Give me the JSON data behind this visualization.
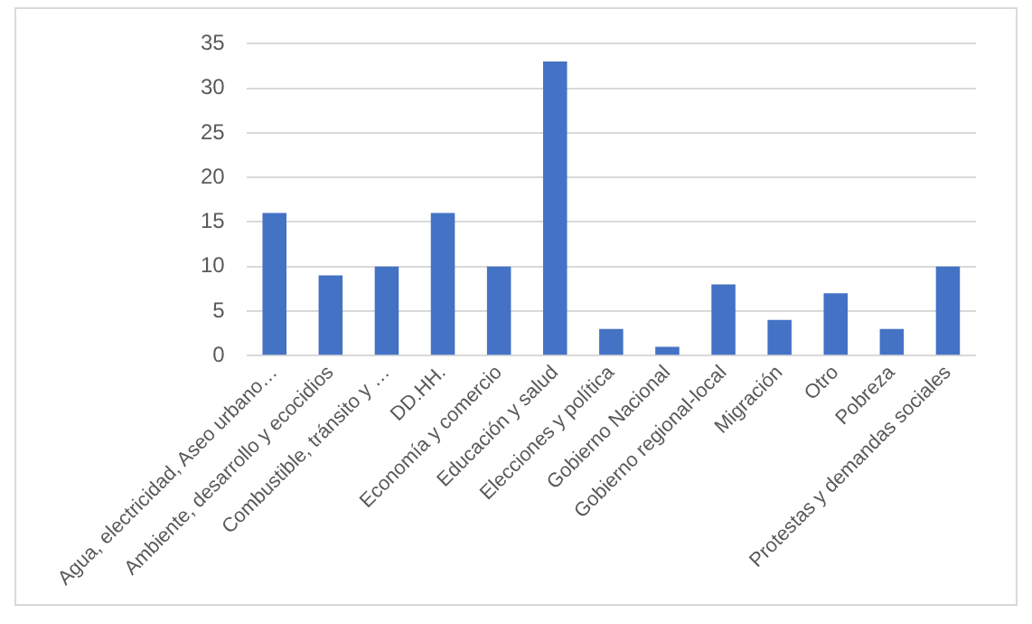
{
  "chart_data": {
    "type": "bar",
    "categories": [
      "Agua, electricidad, Aseo urbano…",
      "Ambiente, desarrollo y ecocidios",
      "Combustible, tránsito y …",
      "DD.HH.",
      "Economía y comercio",
      "Educación y salud",
      "Elecciones y política",
      "Gobierno Nacional",
      "Gobierno regional-local",
      "Migración",
      "Otro",
      "Pobreza",
      "Protestas y demandas sociales"
    ],
    "values": [
      16,
      9,
      10,
      16,
      10,
      33,
      3,
      1,
      8,
      4,
      7,
      3,
      10
    ],
    "color": "#4472c4",
    "ylim": [
      0,
      35
    ],
    "yticks": [
      0,
      5,
      10,
      15,
      20,
      25,
      30,
      35
    ],
    "grid": "y",
    "legend": false
  }
}
